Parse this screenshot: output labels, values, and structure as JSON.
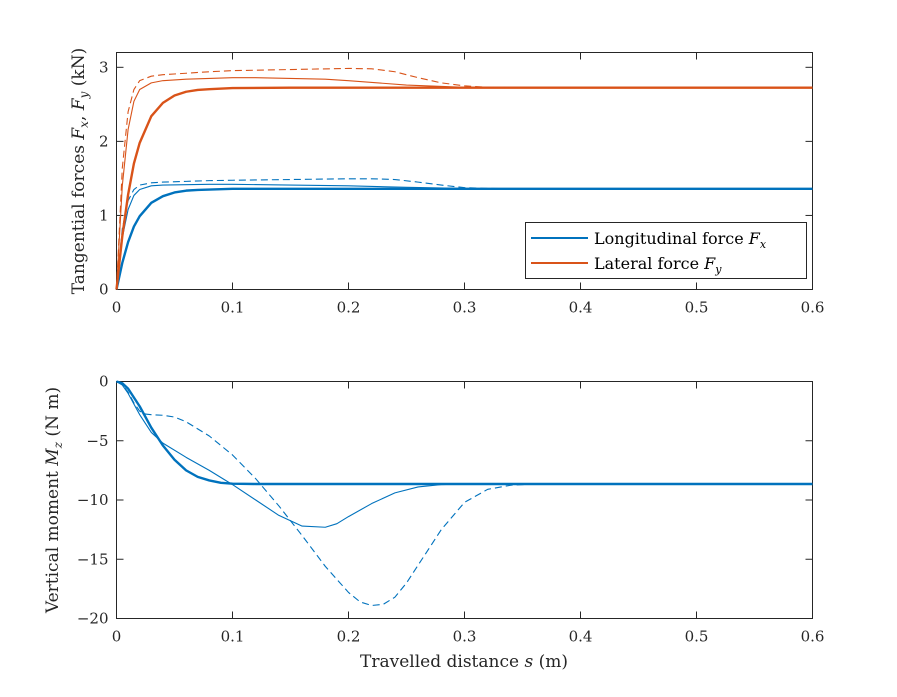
{
  "chart_data": [
    {
      "type": "line",
      "ylabel": "Tangential forces F_x, F_y (kN)",
      "ylabel_parts": [
        "Tangential forces ",
        "F",
        "x",
        ", ",
        "F",
        "y",
        " (kN)"
      ],
      "xlabel": "",
      "xlim": [
        0,
        0.6
      ],
      "ylim": [
        0,
        3.2
      ],
      "xticks": [
        0,
        0.1,
        0.2,
        0.3,
        0.4,
        0.5,
        0.6
      ],
      "xtick_labels": [
        "0",
        "0.1",
        "0.2",
        "0.3",
        "0.4",
        "0.5",
        "0.6"
      ],
      "yticks": [
        0,
        1,
        2,
        3
      ],
      "ytick_labels": [
        "0",
        "1",
        "2",
        "3"
      ],
      "legend": {
        "position": "lower-right",
        "entries": [
          {
            "label": "Longitudinal force ",
            "symbol": "F",
            "sub": "x",
            "color": "#0072BD"
          },
          {
            "label": "Lateral force ",
            "symbol": "F",
            "sub": "y",
            "color": "#D95319"
          }
        ]
      },
      "series": [
        {
          "name": "Fx thick",
          "color": "#0072BD",
          "weight": "thick",
          "style": "solid",
          "x": [
            0,
            0.005,
            0.01,
            0.015,
            0.02,
            0.03,
            0.04,
            0.05,
            0.06,
            0.07,
            0.08,
            0.1,
            0.15,
            0.2,
            0.3,
            0.4,
            0.5,
            0.6
          ],
          "y": [
            0,
            0.36,
            0.64,
            0.85,
            0.99,
            1.17,
            1.26,
            1.31,
            1.335,
            1.345,
            1.35,
            1.36,
            1.36,
            1.36,
            1.36,
            1.36,
            1.36,
            1.36
          ]
        },
        {
          "name": "Fx thin",
          "color": "#0072BD",
          "weight": "thin",
          "style": "solid",
          "x": [
            0,
            0.005,
            0.01,
            0.015,
            0.02,
            0.03,
            0.04,
            0.06,
            0.08,
            0.1,
            0.15,
            0.2,
            0.25,
            0.3,
            0.35,
            0.4,
            0.6
          ],
          "y": [
            0,
            0.7,
            1.08,
            1.27,
            1.35,
            1.4,
            1.41,
            1.415,
            1.42,
            1.42,
            1.41,
            1.4,
            1.38,
            1.365,
            1.36,
            1.36,
            1.36
          ]
        },
        {
          "name": "Fx dashed",
          "color": "#0072BD",
          "weight": "thin",
          "style": "dashed",
          "x": [
            0,
            0.005,
            0.01,
            0.015,
            0.02,
            0.03,
            0.04,
            0.06,
            0.08,
            0.1,
            0.15,
            0.2,
            0.22,
            0.24,
            0.26,
            0.28,
            0.3,
            0.32,
            0.35,
            0.6
          ],
          "y": [
            0,
            0.82,
            1.2,
            1.35,
            1.41,
            1.44,
            1.45,
            1.46,
            1.47,
            1.475,
            1.485,
            1.495,
            1.495,
            1.485,
            1.45,
            1.41,
            1.375,
            1.365,
            1.36,
            1.36
          ]
        },
        {
          "name": "Fy thick",
          "color": "#D95319",
          "weight": "thick",
          "style": "solid",
          "x": [
            0,
            0.005,
            0.01,
            0.015,
            0.02,
            0.03,
            0.04,
            0.05,
            0.06,
            0.07,
            0.08,
            0.1,
            0.15,
            0.2,
            0.3,
            0.4,
            0.5,
            0.6
          ],
          "y": [
            0,
            0.72,
            1.28,
            1.7,
            1.98,
            2.34,
            2.52,
            2.62,
            2.67,
            2.695,
            2.705,
            2.72,
            2.725,
            2.725,
            2.725,
            2.725,
            2.725,
            2.725
          ]
        },
        {
          "name": "Fy thin",
          "color": "#D95319",
          "weight": "thin",
          "style": "solid",
          "x": [
            0,
            0.005,
            0.01,
            0.015,
            0.02,
            0.03,
            0.04,
            0.06,
            0.08,
            0.1,
            0.12,
            0.15,
            0.18,
            0.2,
            0.25,
            0.3,
            0.35,
            0.6
          ],
          "y": [
            0,
            1.4,
            2.16,
            2.54,
            2.7,
            2.79,
            2.82,
            2.84,
            2.85,
            2.86,
            2.86,
            2.85,
            2.84,
            2.82,
            2.76,
            2.73,
            2.725,
            2.725
          ]
        },
        {
          "name": "Fy dashed",
          "color": "#D95319",
          "weight": "thin",
          "style": "dashed",
          "x": [
            0,
            0.005,
            0.01,
            0.015,
            0.02,
            0.03,
            0.04,
            0.06,
            0.08,
            0.1,
            0.15,
            0.2,
            0.22,
            0.24,
            0.26,
            0.28,
            0.3,
            0.32,
            0.35,
            0.6
          ],
          "y": [
            0,
            1.64,
            2.4,
            2.7,
            2.82,
            2.88,
            2.9,
            2.92,
            2.94,
            2.955,
            2.97,
            2.985,
            2.98,
            2.94,
            2.86,
            2.79,
            2.75,
            2.73,
            2.725,
            2.725
          ]
        }
      ]
    },
    {
      "type": "line",
      "ylabel": "Vertical moment M_z (N m)",
      "ylabel_parts": [
        "Vertical moment ",
        "M",
        "z",
        "",
        "",
        "",
        " (N m)"
      ],
      "xlabel": "Travelled distance s (m)",
      "xlabel_parts": [
        "Travelled distance ",
        "s",
        " (m)"
      ],
      "xlim": [
        0,
        0.6
      ],
      "ylim": [
        -20,
        0
      ],
      "xticks": [
        0,
        0.1,
        0.2,
        0.3,
        0.4,
        0.5,
        0.6
      ],
      "xtick_labels": [
        "0",
        "0.1",
        "0.2",
        "0.3",
        "0.4",
        "0.5",
        "0.6"
      ],
      "yticks": [
        0,
        -5,
        -10,
        -15,
        -20
      ],
      "ytick_labels": [
        "0",
        "−5",
        "−10",
        "−15",
        "−20"
      ],
      "series": [
        {
          "name": "Mz thick",
          "color": "#0072BD",
          "weight": "thick",
          "style": "solid",
          "x": [
            0,
            0.005,
            0.01,
            0.02,
            0.03,
            0.04,
            0.05,
            0.06,
            0.07,
            0.08,
            0.09,
            0.1,
            0.12,
            0.15,
            0.2,
            0.3,
            0.4,
            0.5,
            0.6
          ],
          "y": [
            0,
            -0.15,
            -0.6,
            -2.1,
            -3.9,
            -5.4,
            -6.6,
            -7.5,
            -8.05,
            -8.35,
            -8.55,
            -8.62,
            -8.65,
            -8.65,
            -8.65,
            -8.65,
            -8.65,
            -8.65,
            -8.65
          ]
        },
        {
          "name": "Mz thin",
          "color": "#0072BD",
          "weight": "thin",
          "style": "solid",
          "x": [
            0,
            0.005,
            0.01,
            0.02,
            0.03,
            0.04,
            0.06,
            0.08,
            0.1,
            0.12,
            0.14,
            0.16,
            0.18,
            0.19,
            0.2,
            0.22,
            0.24,
            0.26,
            0.28,
            0.3,
            0.6
          ],
          "y": [
            0,
            -0.3,
            -1.0,
            -2.8,
            -4.3,
            -5.2,
            -6.4,
            -7.5,
            -8.7,
            -10.0,
            -11.3,
            -12.2,
            -12.3,
            -12.0,
            -11.4,
            -10.3,
            -9.4,
            -8.9,
            -8.7,
            -8.65,
            -8.65
          ]
        },
        {
          "name": "Mz dashed",
          "color": "#0072BD",
          "weight": "thin",
          "style": "dashed",
          "x": [
            0,
            0.005,
            0.01,
            0.015,
            0.02,
            0.025,
            0.03,
            0.04,
            0.05,
            0.06,
            0.08,
            0.1,
            0.12,
            0.14,
            0.16,
            0.18,
            0.2,
            0.21,
            0.22,
            0.23,
            0.24,
            0.25,
            0.26,
            0.28,
            0.3,
            0.32,
            0.34,
            0.36,
            0.6
          ],
          "y": [
            0,
            -0.25,
            -0.9,
            -1.8,
            -2.5,
            -2.75,
            -2.8,
            -2.85,
            -3.0,
            -3.4,
            -4.6,
            -6.2,
            -8.2,
            -10.5,
            -13.0,
            -15.6,
            -17.8,
            -18.6,
            -18.9,
            -18.8,
            -18.2,
            -17.0,
            -15.5,
            -12.5,
            -10.2,
            -9.1,
            -8.75,
            -8.65,
            -8.65
          ]
        }
      ]
    }
  ]
}
